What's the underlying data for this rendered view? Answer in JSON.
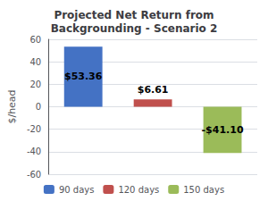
{
  "chart_data": {
    "type": "bar",
    "title": "Projected Net Return from\nBackgrounding - Scenario 2",
    "categories": [
      "90 days",
      "120 days",
      "150 days"
    ],
    "values": [
      53.36,
      6.61,
      -41.1
    ],
    "value_labels": [
      "$53.36",
      "$6.61",
      "-$41.10"
    ],
    "colors": [
      "#4472C4",
      "#C0504D",
      "#9BBB59"
    ],
    "ylabel": "$/head",
    "ylim": [
      -60,
      60
    ],
    "yticks": [
      -60,
      -40,
      -20,
      0,
      20,
      40,
      60
    ],
    "grid": true,
    "legend": "bottom",
    "data_labels": true,
    "tick_labels": "y"
  }
}
